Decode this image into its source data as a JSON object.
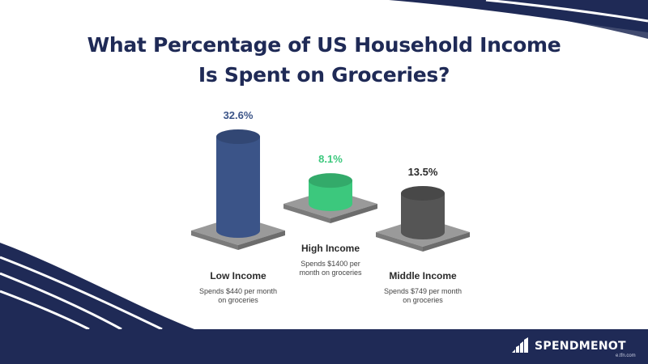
{
  "header": {
    "title_line1": "What Percentage of US Household Income",
    "title_line2": "Is Spent on Groceries?"
  },
  "chart_data": {
    "type": "bar",
    "title": "What Percentage of US Household Income Is Spent on Groceries?",
    "categories": [
      "Low Income",
      "High Income",
      "Middle Income"
    ],
    "values": [
      32.6,
      8.1,
      13.5
    ],
    "value_labels": [
      "32.6%",
      "8.1%",
      "13.5%"
    ],
    "descriptions": [
      [
        "Spends $440 per month",
        "on groceries"
      ],
      [
        "Spends $1400 per",
        "month on groceries"
      ],
      [
        "Spends $749 per month",
        "on groceries"
      ]
    ],
    "colors": [
      "#3b5488",
      "#3cc87d",
      "#555555"
    ],
    "label_colors": [
      "#3b5488",
      "#3cc87d",
      "#2a2a2a"
    ],
    "ylim": [
      0,
      35
    ],
    "xlabel": "",
    "ylabel": "",
    "grid": false
  },
  "theme": {
    "navy": "#1f2a56",
    "platform": "#9a9a9a"
  },
  "footer": {
    "brand": "SPENDMENOT",
    "url": "e.tfn.com",
    "icon": "spendmenot-logo-icon"
  }
}
